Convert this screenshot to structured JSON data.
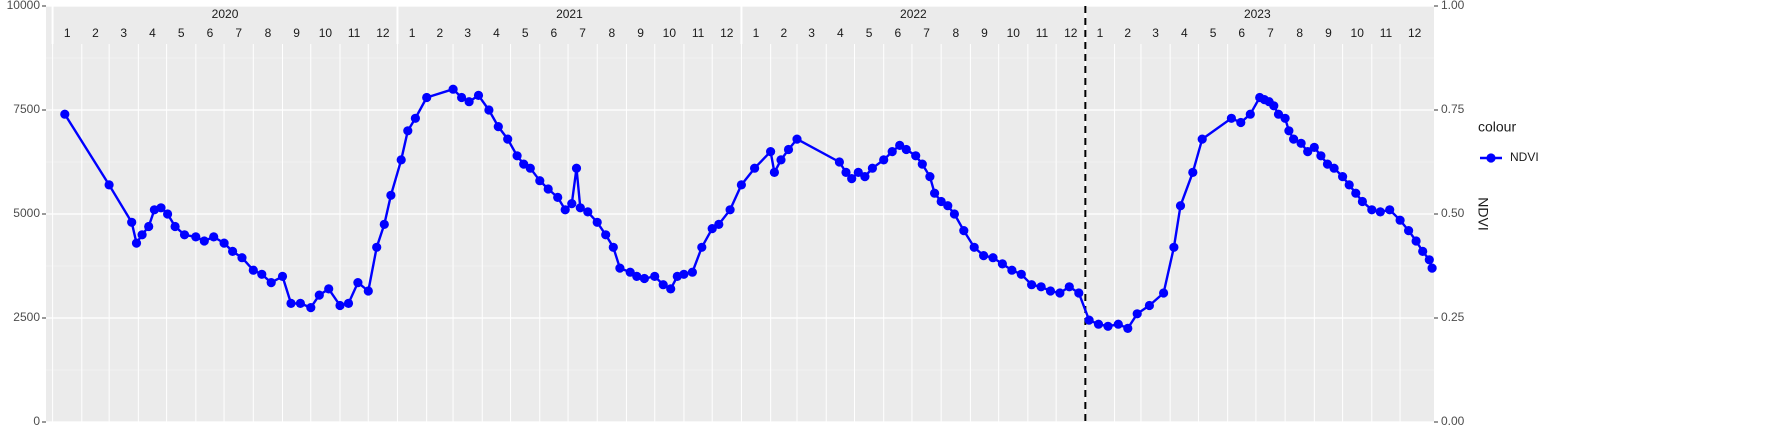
{
  "chart_data": {
    "type": "line",
    "years": [
      {
        "label": "2020",
        "start": "2020-01-01",
        "end": "2020-12-31"
      },
      {
        "label": "2021",
        "start": "2021-01-01",
        "end": "2021-12-31"
      },
      {
        "label": "2022",
        "start": "2022-01-01",
        "end": "2022-12-31"
      },
      {
        "label": "2023",
        "start": "2023-01-01",
        "end": "2023-12-31"
      }
    ],
    "month_labels": [
      "1",
      "2",
      "3",
      "4",
      "5",
      "6",
      "7",
      "8",
      "9",
      "10",
      "11",
      "12"
    ],
    "xlim": [
      "2019-12-25",
      "2024-01-06"
    ],
    "ylim_left": [
      0,
      10000
    ],
    "ylim_right": [
      0,
      1
    ],
    "left_ticks": [
      0,
      2500,
      5000,
      7500,
      10000
    ],
    "right_ticks": [
      "0.00",
      "0.25",
      "0.50",
      "0.75",
      "1.00"
    ],
    "right_tick_values": [
      0,
      0.25,
      0.5,
      0.75,
      1.0
    ],
    "y2label": "NDVI",
    "xlabel": "",
    "ylabel": "",
    "grid": true,
    "vline_date": "2023-01-01",
    "legend_title": "colour",
    "legend_position": "right",
    "series": [
      {
        "name": "NDVI",
        "color": "#0000ff",
        "points": [
          [
            "2020-01-14",
            7400
          ],
          [
            "2020-03-01",
            5700
          ],
          [
            "2020-03-25",
            4800
          ],
          [
            "2020-03-30",
            4300
          ],
          [
            "2020-04-05",
            4500
          ],
          [
            "2020-04-12",
            4700
          ],
          [
            "2020-04-18",
            5100
          ],
          [
            "2020-04-25",
            5150
          ],
          [
            "2020-05-02",
            5000
          ],
          [
            "2020-05-10",
            4700
          ],
          [
            "2020-05-20",
            4500
          ],
          [
            "2020-06-01",
            4450
          ],
          [
            "2020-06-10",
            4350
          ],
          [
            "2020-06-20",
            4450
          ],
          [
            "2020-07-01",
            4300
          ],
          [
            "2020-07-10",
            4100
          ],
          [
            "2020-07-20",
            3950
          ],
          [
            "2020-08-01",
            3650
          ],
          [
            "2020-08-10",
            3550
          ],
          [
            "2020-08-20",
            3350
          ],
          [
            "2020-09-01",
            3500
          ],
          [
            "2020-09-10",
            2850
          ],
          [
            "2020-09-20",
            2850
          ],
          [
            "2020-10-01",
            2750
          ],
          [
            "2020-10-10",
            3050
          ],
          [
            "2020-10-20",
            3200
          ],
          [
            "2020-11-01",
            2800
          ],
          [
            "2020-11-10",
            2850
          ],
          [
            "2020-11-20",
            3350
          ],
          [
            "2020-12-01",
            3150
          ],
          [
            "2020-12-10",
            4200
          ],
          [
            "2020-12-18",
            4750
          ],
          [
            "2020-12-25",
            5450
          ],
          [
            "2021-01-05",
            6300
          ],
          [
            "2021-01-12",
            7000
          ],
          [
            "2021-01-20",
            7300
          ],
          [
            "2021-02-01",
            7800
          ],
          [
            "2021-03-01",
            8000
          ],
          [
            "2021-03-10",
            7800
          ],
          [
            "2021-03-18",
            7700
          ],
          [
            "2021-03-28",
            7850
          ],
          [
            "2021-04-08",
            7500
          ],
          [
            "2021-04-18",
            7100
          ],
          [
            "2021-04-28",
            6800
          ],
          [
            "2021-05-08",
            6400
          ],
          [
            "2021-05-15",
            6200
          ],
          [
            "2021-05-22",
            6100
          ],
          [
            "2021-06-01",
            5800
          ],
          [
            "2021-06-10",
            5600
          ],
          [
            "2021-06-20",
            5400
          ],
          [
            "2021-06-28",
            5100
          ],
          [
            "2021-07-05",
            5250
          ],
          [
            "2021-07-10",
            6100
          ],
          [
            "2021-07-14",
            5150
          ],
          [
            "2021-07-22",
            5050
          ],
          [
            "2021-08-01",
            4800
          ],
          [
            "2021-08-10",
            4500
          ],
          [
            "2021-08-18",
            4200
          ],
          [
            "2021-08-25",
            3700
          ],
          [
            "2021-09-05",
            3600
          ],
          [
            "2021-09-12",
            3500
          ],
          [
            "2021-09-20",
            3450
          ],
          [
            "2021-10-01",
            3500
          ],
          [
            "2021-10-10",
            3300
          ],
          [
            "2021-10-18",
            3200
          ],
          [
            "2021-10-25",
            3500
          ],
          [
            "2021-11-01",
            3550
          ],
          [
            "2021-11-10",
            3600
          ],
          [
            "2021-11-20",
            4200
          ],
          [
            "2021-12-01",
            4650
          ],
          [
            "2021-12-08",
            4750
          ],
          [
            "2021-12-20",
            5100
          ],
          [
            "2022-01-01",
            5700
          ],
          [
            "2022-01-15",
            6100
          ],
          [
            "2022-02-01",
            6500
          ],
          [
            "2022-02-05",
            6000
          ],
          [
            "2022-02-12",
            6300
          ],
          [
            "2022-02-20",
            6550
          ],
          [
            "2022-03-01",
            6800
          ],
          [
            "2022-04-15",
            6250
          ],
          [
            "2022-04-22",
            6000
          ],
          [
            "2022-04-28",
            5850
          ],
          [
            "2022-05-05",
            6000
          ],
          [
            "2022-05-12",
            5900
          ],
          [
            "2022-05-20",
            6100
          ],
          [
            "2022-06-01",
            6300
          ],
          [
            "2022-06-10",
            6500
          ],
          [
            "2022-06-18",
            6650
          ],
          [
            "2022-06-25",
            6550
          ],
          [
            "2022-07-05",
            6400
          ],
          [
            "2022-07-12",
            6200
          ],
          [
            "2022-07-20",
            5900
          ],
          [
            "2022-07-25",
            5500
          ],
          [
            "2022-08-01",
            5300
          ],
          [
            "2022-08-08",
            5200
          ],
          [
            "2022-08-15",
            5000
          ],
          [
            "2022-08-25",
            4600
          ],
          [
            "2022-09-05",
            4200
          ],
          [
            "2022-09-15",
            4000
          ],
          [
            "2022-09-25",
            3950
          ],
          [
            "2022-10-05",
            3800
          ],
          [
            "2022-10-15",
            3650
          ],
          [
            "2022-10-25",
            3550
          ],
          [
            "2022-11-05",
            3300
          ],
          [
            "2022-11-15",
            3250
          ],
          [
            "2022-11-25",
            3150
          ],
          [
            "2022-12-05",
            3100
          ],
          [
            "2022-12-15",
            3250
          ],
          [
            "2022-12-25",
            3100
          ],
          [
            "2023-01-05",
            2450
          ],
          [
            "2023-01-15",
            2350
          ],
          [
            "2023-01-25",
            2300
          ],
          [
            "2023-02-05",
            2350
          ],
          [
            "2023-02-15",
            2250
          ],
          [
            "2023-02-25",
            2600
          ],
          [
            "2023-03-10",
            2800
          ],
          [
            "2023-03-25",
            3100
          ],
          [
            "2023-04-05",
            4200
          ],
          [
            "2023-04-12",
            5200
          ],
          [
            "2023-04-25",
            6000
          ],
          [
            "2023-05-05",
            6800
          ],
          [
            "2023-06-05",
            7300
          ],
          [
            "2023-06-15",
            7200
          ],
          [
            "2023-06-25",
            7400
          ],
          [
            "2023-07-05",
            7800
          ],
          [
            "2023-07-10",
            7750
          ],
          [
            "2023-07-15",
            7700
          ],
          [
            "2023-07-20",
            7600
          ],
          [
            "2023-07-25",
            7400
          ],
          [
            "2023-08-01",
            7300
          ],
          [
            "2023-08-05",
            7000
          ],
          [
            "2023-08-10",
            6800
          ],
          [
            "2023-08-18",
            6700
          ],
          [
            "2023-08-25",
            6500
          ],
          [
            "2023-09-01",
            6600
          ],
          [
            "2023-09-08",
            6400
          ],
          [
            "2023-09-15",
            6200
          ],
          [
            "2023-09-22",
            6100
          ],
          [
            "2023-10-01",
            5900
          ],
          [
            "2023-10-08",
            5700
          ],
          [
            "2023-10-15",
            5500
          ],
          [
            "2023-10-22",
            5300
          ],
          [
            "2023-11-01",
            5100
          ],
          [
            "2023-11-10",
            5050
          ],
          [
            "2023-11-20",
            5100
          ],
          [
            "2023-12-01",
            4850
          ],
          [
            "2023-12-10",
            4600
          ],
          [
            "2023-12-18",
            4350
          ],
          [
            "2023-12-25",
            4100
          ],
          [
            "2024-01-01",
            3900
          ],
          [
            "2024-01-04",
            3700
          ]
        ]
      }
    ]
  }
}
